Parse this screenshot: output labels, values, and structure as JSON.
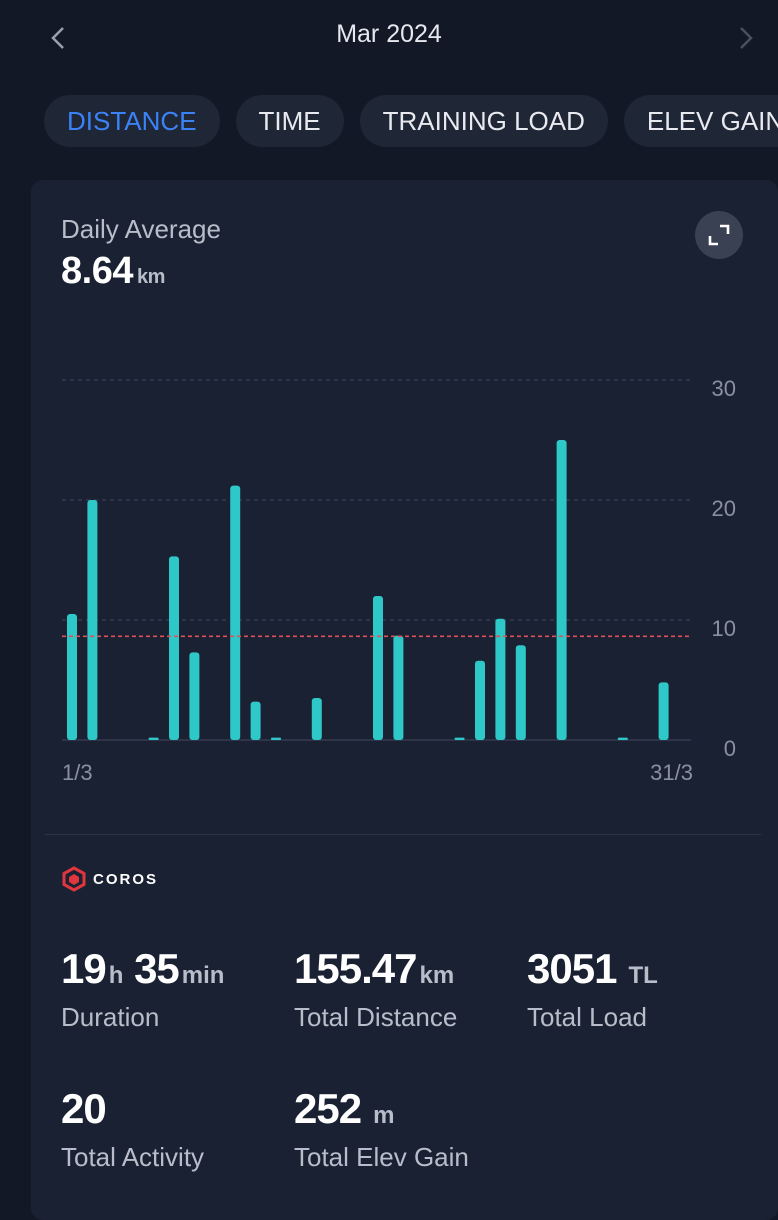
{
  "header": {
    "title": "Mar 2024",
    "prev_icon": "chevron-left-icon",
    "next_icon": "chevron-right-icon"
  },
  "tabs": [
    {
      "label": "DISTANCE",
      "active": true
    },
    {
      "label": "TIME",
      "active": false
    },
    {
      "label": "TRAINING LOAD",
      "active": false
    },
    {
      "label": "ELEV GAIN",
      "active": false
    }
  ],
  "summary": {
    "label": "Daily Average",
    "value": "8.64",
    "unit": "km"
  },
  "expand_icon": "expand-icon",
  "chart_data": {
    "type": "bar",
    "x_start_label": "1/3",
    "x_end_label": "31/3",
    "y_ticks": [
      "0",
      "10",
      "20",
      "30"
    ],
    "ylim": [
      0,
      30
    ],
    "grid": true,
    "average_line": 8.64,
    "bar_color": "#2ec8c8",
    "average_color": "#e0505a",
    "days": [
      1,
      2,
      3,
      4,
      5,
      6,
      7,
      8,
      9,
      10,
      11,
      12,
      13,
      14,
      15,
      16,
      17,
      18,
      19,
      20,
      21,
      22,
      23,
      24,
      25,
      26,
      27,
      28,
      29,
      30,
      31
    ],
    "values": [
      10.5,
      20.0,
      0,
      0,
      0.2,
      15.3,
      7.3,
      0,
      21.2,
      3.2,
      0.2,
      0,
      3.5,
      0,
      0,
      12.0,
      8.7,
      0,
      0,
      0.2,
      6.6,
      10.1,
      7.9,
      0,
      25.0,
      0,
      0,
      0.2,
      0,
      4.8,
      0
    ]
  },
  "brand": {
    "name": "COROS",
    "icon": "coros-logo-icon",
    "color": "#e0363e"
  },
  "stats": [
    {
      "value_a": "19",
      "unit_a": "h",
      "value_b": "35",
      "unit_b": "min",
      "label": "Duration"
    },
    {
      "value": "155.47",
      "unit": "km",
      "label": "Total Distance"
    },
    {
      "value": "3051",
      "unit": "TL",
      "label": "Total Load"
    },
    {
      "value": "20",
      "unit": "",
      "label": "Total Activity"
    },
    {
      "value": "252",
      "unit": "m",
      "label": "Total Elev Gain"
    }
  ]
}
